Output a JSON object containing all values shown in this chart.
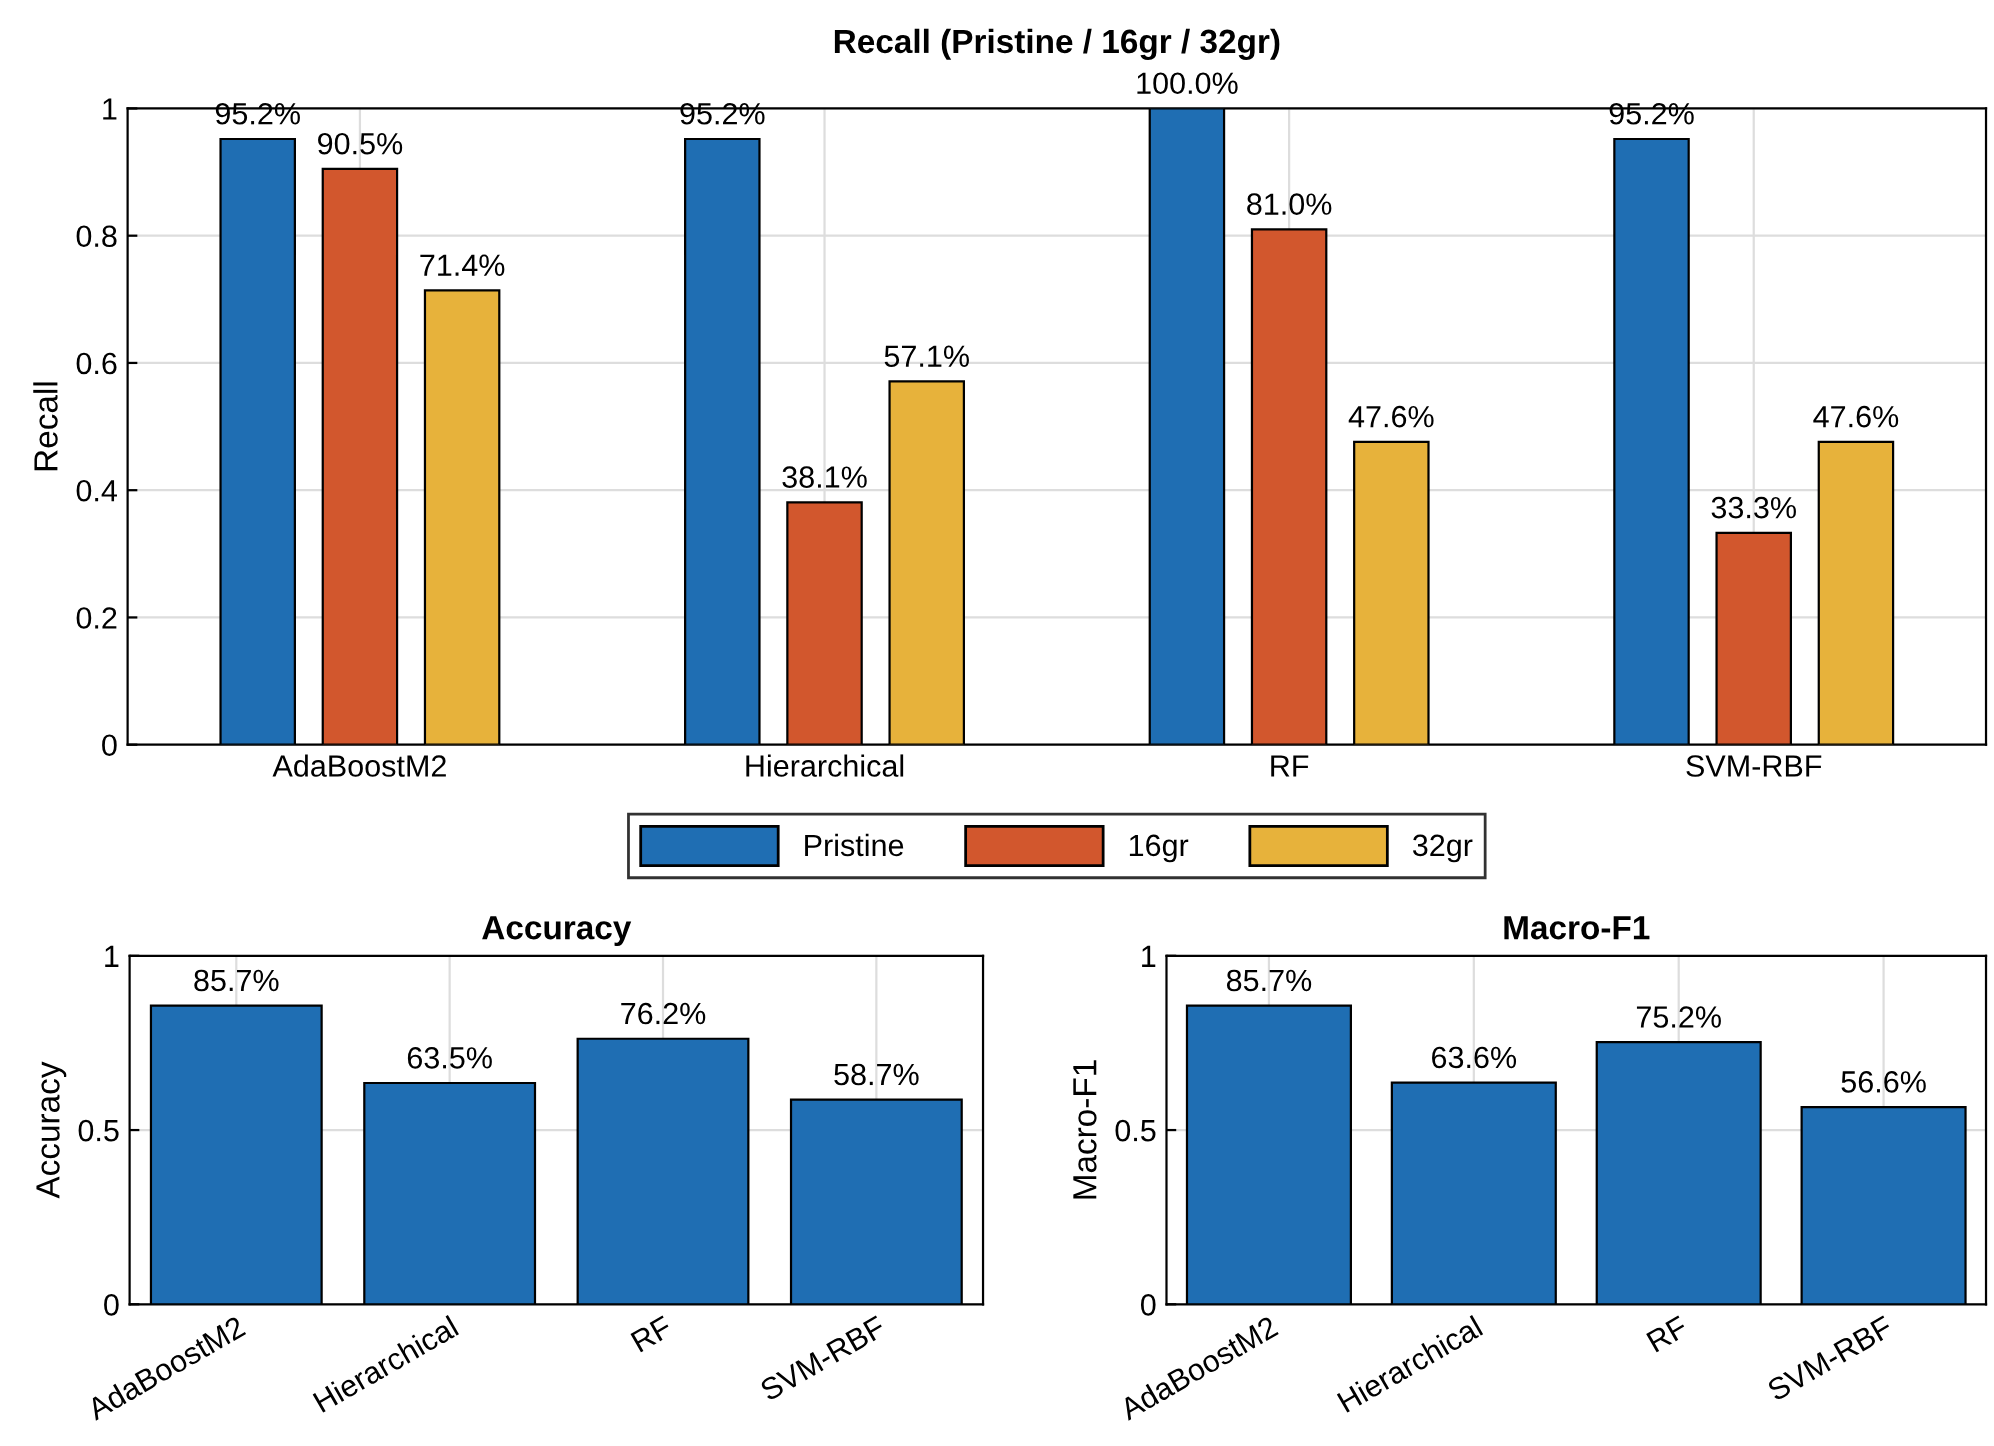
{
  "chart_data": [
    {
      "type": "bar",
      "title": "Recall (Pristine / 16gr / 32gr)",
      "ylabel": "Recall",
      "categories": [
        "AdaBoostM2",
        "Hierarchical",
        "RF",
        "SVM-RBF"
      ],
      "ylim": [
        0,
        1
      ],
      "yticks": [
        0,
        0.2,
        0.4,
        0.6,
        0.8,
        1
      ],
      "grid": true,
      "legend": "bottom",
      "series": [
        {
          "name": "Pristine",
          "color": "#1f6eb3",
          "values": [
            0.952,
            0.952,
            1.0,
            0.952
          ],
          "value_labels": [
            "95.2%",
            "95.2%",
            "100.0%",
            "95.2%"
          ]
        },
        {
          "name": "16gr",
          "color": "#d2572d",
          "values": [
            0.905,
            0.381,
            0.81,
            0.333
          ],
          "value_labels": [
            "90.5%",
            "38.1%",
            "81.0%",
            "33.3%"
          ]
        },
        {
          "name": "32gr",
          "color": "#e7b23b",
          "values": [
            0.714,
            0.571,
            0.476,
            0.476
          ],
          "value_labels": [
            "71.4%",
            "57.1%",
            "47.6%",
            "47.6%"
          ]
        }
      ]
    },
    {
      "type": "bar",
      "title": "Accuracy",
      "ylabel": "Accuracy",
      "categories": [
        "AdaBoostM2",
        "Hierarchical",
        "RF",
        "SVM-RBF"
      ],
      "ylim": [
        0,
        1
      ],
      "yticks": [
        0,
        0.5,
        1
      ],
      "grid": true,
      "series": [
        {
          "color": "#1f6eb3",
          "values": [
            0.857,
            0.635,
            0.762,
            0.587
          ],
          "value_labels": [
            "85.7%",
            "63.5%",
            "76.2%",
            "58.7%"
          ]
        }
      ]
    },
    {
      "type": "bar",
      "title": "Macro-F1",
      "ylabel": "Macro-F1",
      "categories": [
        "AdaBoostM2",
        "Hierarchical",
        "RF",
        "SVM-RBF"
      ],
      "ylim": [
        0,
        1
      ],
      "yticks": [
        0,
        0.5,
        1
      ],
      "grid": true,
      "series": [
        {
          "color": "#1f6eb3",
          "values": [
            0.857,
            0.636,
            0.752,
            0.566
          ],
          "value_labels": [
            "85.7%",
            "63.6%",
            "75.2%",
            "56.6%"
          ]
        }
      ]
    }
  ]
}
